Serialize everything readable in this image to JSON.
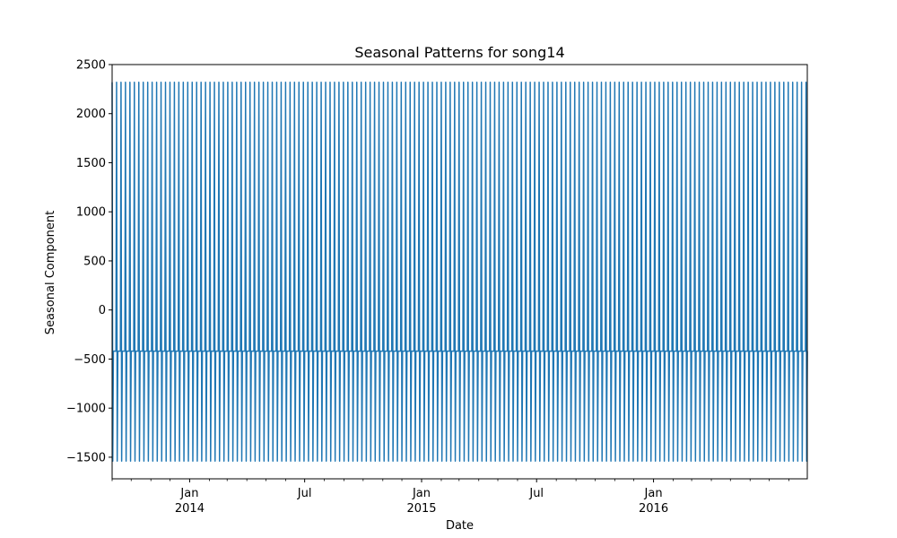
{
  "chart_data": {
    "type": "line",
    "title": "Seasonal Patterns for song14",
    "xlabel": "Date",
    "ylabel": "Seasonal Component",
    "x_range": [
      "2013-09-01",
      "2016-08-30"
    ],
    "ylim": [
      -1720,
      2500
    ],
    "y_ticks": [
      -1500,
      -1000,
      -500,
      0,
      500,
      1000,
      1500,
      2000,
      2500
    ],
    "y_tick_labels": [
      "−1500",
      "−1000",
      "−500",
      "0",
      "500",
      "1000",
      "1500",
      "2000",
      "2500"
    ],
    "x_major_ticks": [
      {
        "date": "2014-01-01",
        "label": "Jan",
        "year_label": "2014"
      },
      {
        "date": "2014-07-01",
        "label": "Jul",
        "year_label": ""
      },
      {
        "date": "2015-01-01",
        "label": "Jan",
        "year_label": "2015"
      },
      {
        "date": "2015-07-01",
        "label": "Jul",
        "year_label": ""
      },
      {
        "date": "2016-01-01",
        "label": "Jan",
        "year_label": "2016"
      }
    ],
    "series": [
      {
        "color": "#1f77b4",
        "period_days": 7,
        "weekly_pattern": [
          2320,
          -1540,
          -420,
          -420,
          -420,
          -420,
          -420
        ]
      }
    ],
    "grid": false,
    "legend": "none"
  }
}
